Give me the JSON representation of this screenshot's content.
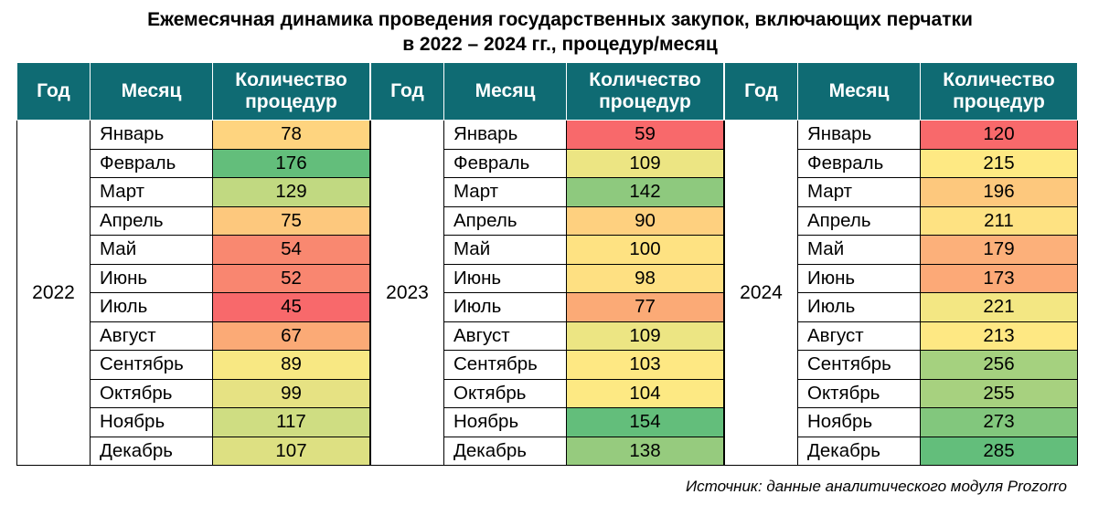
{
  "title_line1": "Ежемесячная динамика проведения государственных закупок, включающих перчатки",
  "title_line2": "в 2022 –  2024 гг., процедур/месяц",
  "headers": {
    "year": "Год",
    "month": "Месяц",
    "count_line1": "Количество",
    "count_line2": "процедур"
  },
  "source": "Источник: данные аналитического модуля Prozorro",
  "chart_data": {
    "type": "table",
    "columns": [
      "Год",
      "Месяц",
      "Количество процедур"
    ],
    "blocks": [
      {
        "year": "2022",
        "rows": [
          {
            "month": "Январь",
            "value": 78,
            "color": "#fed47f"
          },
          {
            "month": "Февраль",
            "value": 176,
            "color": "#63be7b"
          },
          {
            "month": "Март",
            "value": 129,
            "color": "#c1d981"
          },
          {
            "month": "Апрель",
            "value": 75,
            "color": "#fdc87d"
          },
          {
            "month": "Май",
            "value": 54,
            "color": "#f98870"
          },
          {
            "month": "Июнь",
            "value": 52,
            "color": "#f98670"
          },
          {
            "month": "Июль",
            "value": 45,
            "color": "#f8696b"
          },
          {
            "month": "Август",
            "value": 67,
            "color": "#fbaa76"
          },
          {
            "month": "Сентябрь",
            "value": 89,
            "color": "#f8e883"
          },
          {
            "month": "Октябрь",
            "value": 99,
            "color": "#e6e283"
          },
          {
            "month": "Ноябрь",
            "value": 117,
            "color": "#cfdd82"
          },
          {
            "month": "Декабрь",
            "value": 107,
            "color": "#dde082"
          }
        ]
      },
      {
        "year": "2023",
        "rows": [
          {
            "month": "Январь",
            "value": 59,
            "color": "#f8696b"
          },
          {
            "month": "Февраль",
            "value": 109,
            "color": "#ece583"
          },
          {
            "month": "Март",
            "value": 142,
            "color": "#8ec97e"
          },
          {
            "month": "Апрель",
            "value": 90,
            "color": "#fed07f"
          },
          {
            "month": "Май",
            "value": 100,
            "color": "#fee282"
          },
          {
            "month": "Июнь",
            "value": 98,
            "color": "#fee082"
          },
          {
            "month": "Июль",
            "value": 77,
            "color": "#fbaa76"
          },
          {
            "month": "Август",
            "value": 109,
            "color": "#ece583"
          },
          {
            "month": "Сентябрь",
            "value": 103,
            "color": "#fee883"
          },
          {
            "month": "Октябрь",
            "value": 104,
            "color": "#fde983"
          },
          {
            "month": "Ноябрь",
            "value": 154,
            "color": "#63be7b"
          },
          {
            "month": "Декабрь",
            "value": 138,
            "color": "#96cb7e"
          }
        ]
      },
      {
        "year": "2024",
        "rows": [
          {
            "month": "Январь",
            "value": 120,
            "color": "#f8696b"
          },
          {
            "month": "Февраль",
            "value": 215,
            "color": "#fee983"
          },
          {
            "month": "Март",
            "value": 196,
            "color": "#fdc87d"
          },
          {
            "month": "Апрель",
            "value": 211,
            "color": "#fee282"
          },
          {
            "month": "Май",
            "value": 179,
            "color": "#fcb07a"
          },
          {
            "month": "Июнь",
            "value": 173,
            "color": "#fca977"
          },
          {
            "month": "Июль",
            "value": 221,
            "color": "#f3e783"
          },
          {
            "month": "Август",
            "value": 213,
            "color": "#fee883"
          },
          {
            "month": "Сентябрь",
            "value": 256,
            "color": "#a5d17f"
          },
          {
            "month": "Октябрь",
            "value": 255,
            "color": "#a7d17f"
          },
          {
            "month": "Ноябрь",
            "value": 273,
            "color": "#82c77d"
          },
          {
            "month": "Декабрь",
            "value": 285,
            "color": "#63be7b"
          }
        ]
      }
    ]
  }
}
